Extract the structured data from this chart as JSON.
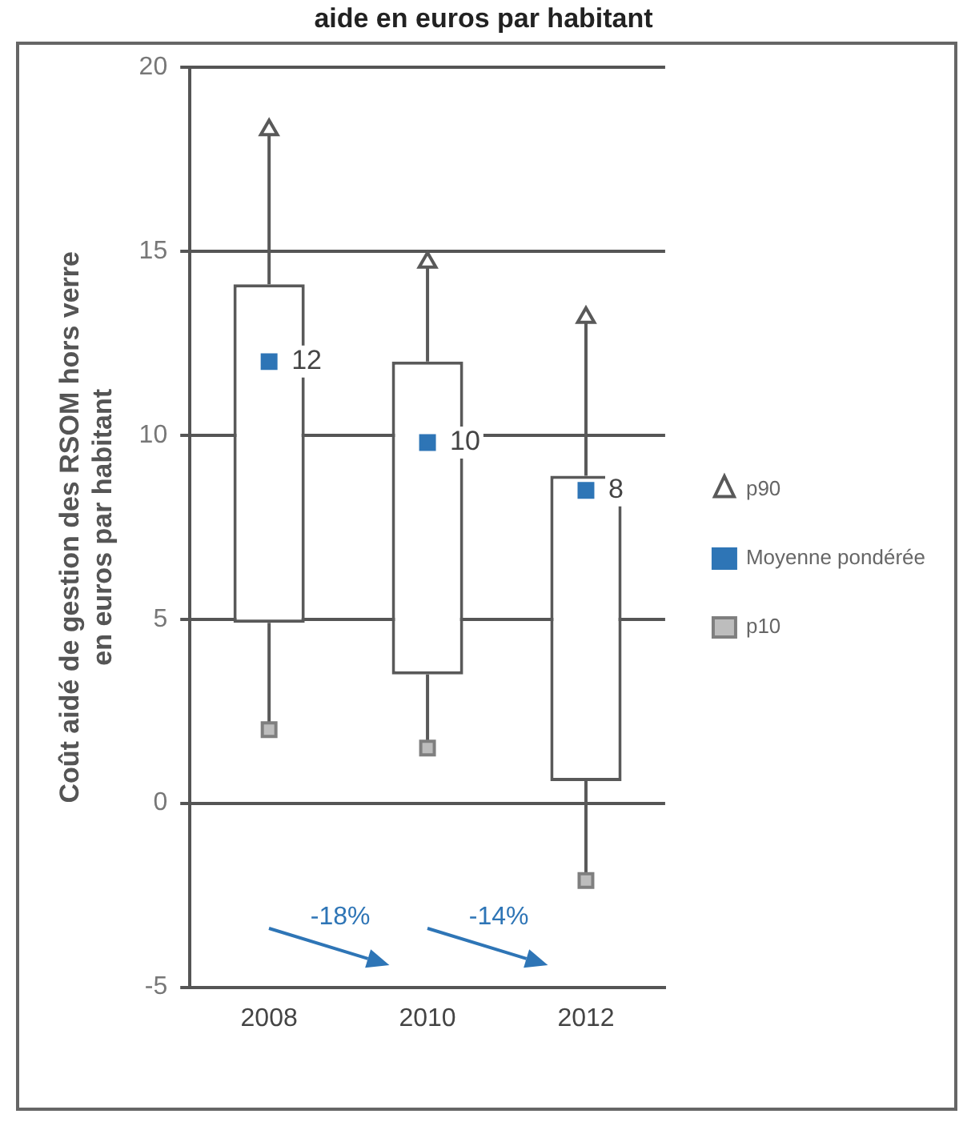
{
  "chart_data": {
    "type": "box",
    "title": "aide en euros par habitant",
    "ylabel": "Coût aidé de gestion des RSOM hors verre en euros par habitant",
    "categories": [
      "2008",
      "2010",
      "2012"
    ],
    "boxes": [
      {
        "low": 2.0,
        "q1": 4.9,
        "q3": 14.1,
        "high": 18.3
      },
      {
        "low": 1.5,
        "q1": 3.5,
        "q3": 12.0,
        "high": 14.7
      },
      {
        "low": -2.1,
        "q1": 0.6,
        "q3": 8.9,
        "high": 13.2
      }
    ],
    "series": [
      {
        "name": "p90",
        "type": "scatter",
        "marker": "triangle",
        "color": "#595959",
        "values": [
          18.3,
          14.7,
          13.2
        ]
      },
      {
        "name": "Moyenne pondérée",
        "type": "scatter",
        "marker": "square",
        "color": "#2e75b6",
        "values": [
          12.0,
          9.8,
          8.5
        ],
        "value_labels": [
          "12",
          "10",
          "8"
        ]
      },
      {
        "name": "p10",
        "type": "scatter",
        "marker": "square",
        "color": "#7f7f7f",
        "values": [
          2.0,
          1.5,
          -2.1
        ]
      }
    ],
    "annotations": [
      "-18%",
      "-14%"
    ],
    "ylim": [
      -5,
      20
    ],
    "yticks": [
      -5,
      0,
      5,
      10,
      15,
      20
    ],
    "grid": "y",
    "legend": "right"
  }
}
